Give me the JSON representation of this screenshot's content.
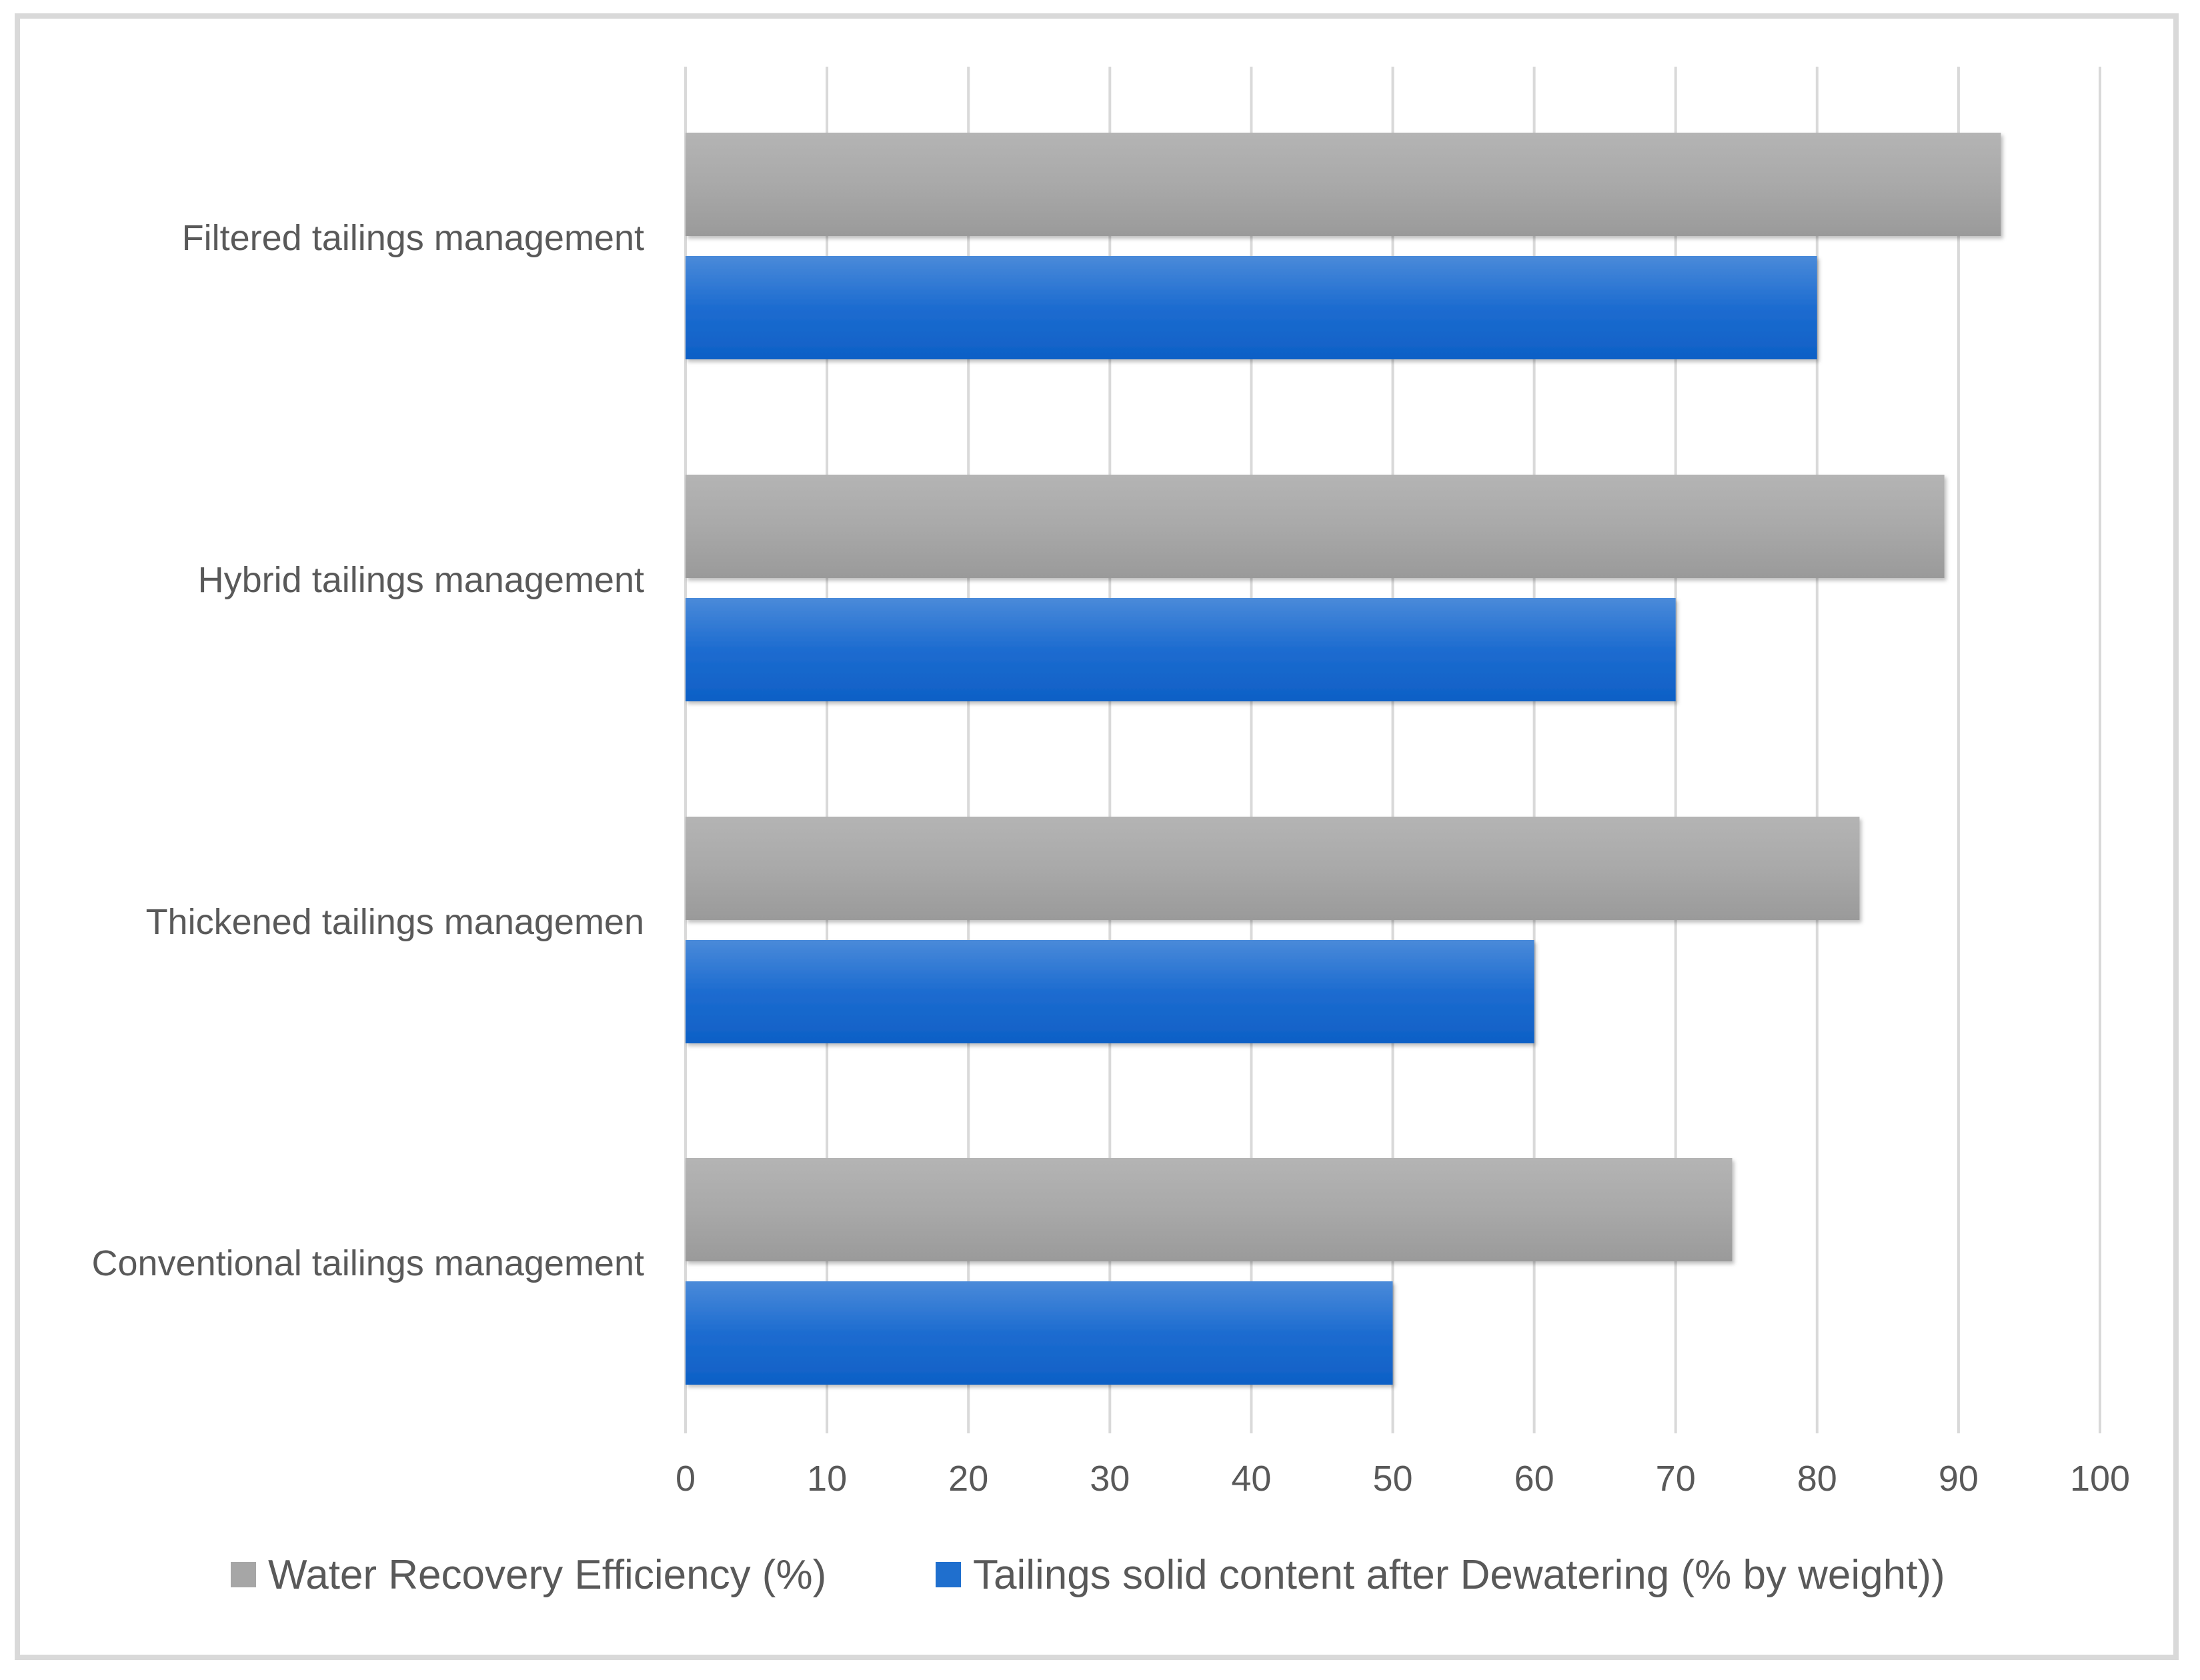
{
  "chart_data": {
    "type": "bar",
    "orientation": "horizontal",
    "title": "",
    "xlabel": "",
    "ylabel": "",
    "categories": [
      "Conventional tailings management",
      "Thickened tailings managemen",
      "Hybrid tailings management",
      "Filtered tailings management"
    ],
    "series": [
      {
        "name": "Water Recovery Efficiency (%)",
        "color": "#a6a6a6",
        "values": [
          74,
          83,
          89,
          93
        ]
      },
      {
        "name": "Tailings solid content after Dewatering (% by weight))",
        "color": "#1f6fce",
        "values": [
          50,
          60,
          70,
          80
        ]
      }
    ],
    "xlim": [
      0,
      100
    ],
    "xticks": [
      "0",
      "10",
      "20",
      "30",
      "40",
      "50",
      "60",
      "70",
      "80",
      "90",
      "100"
    ],
    "grid": "vertical",
    "legend_position": "bottom"
  }
}
